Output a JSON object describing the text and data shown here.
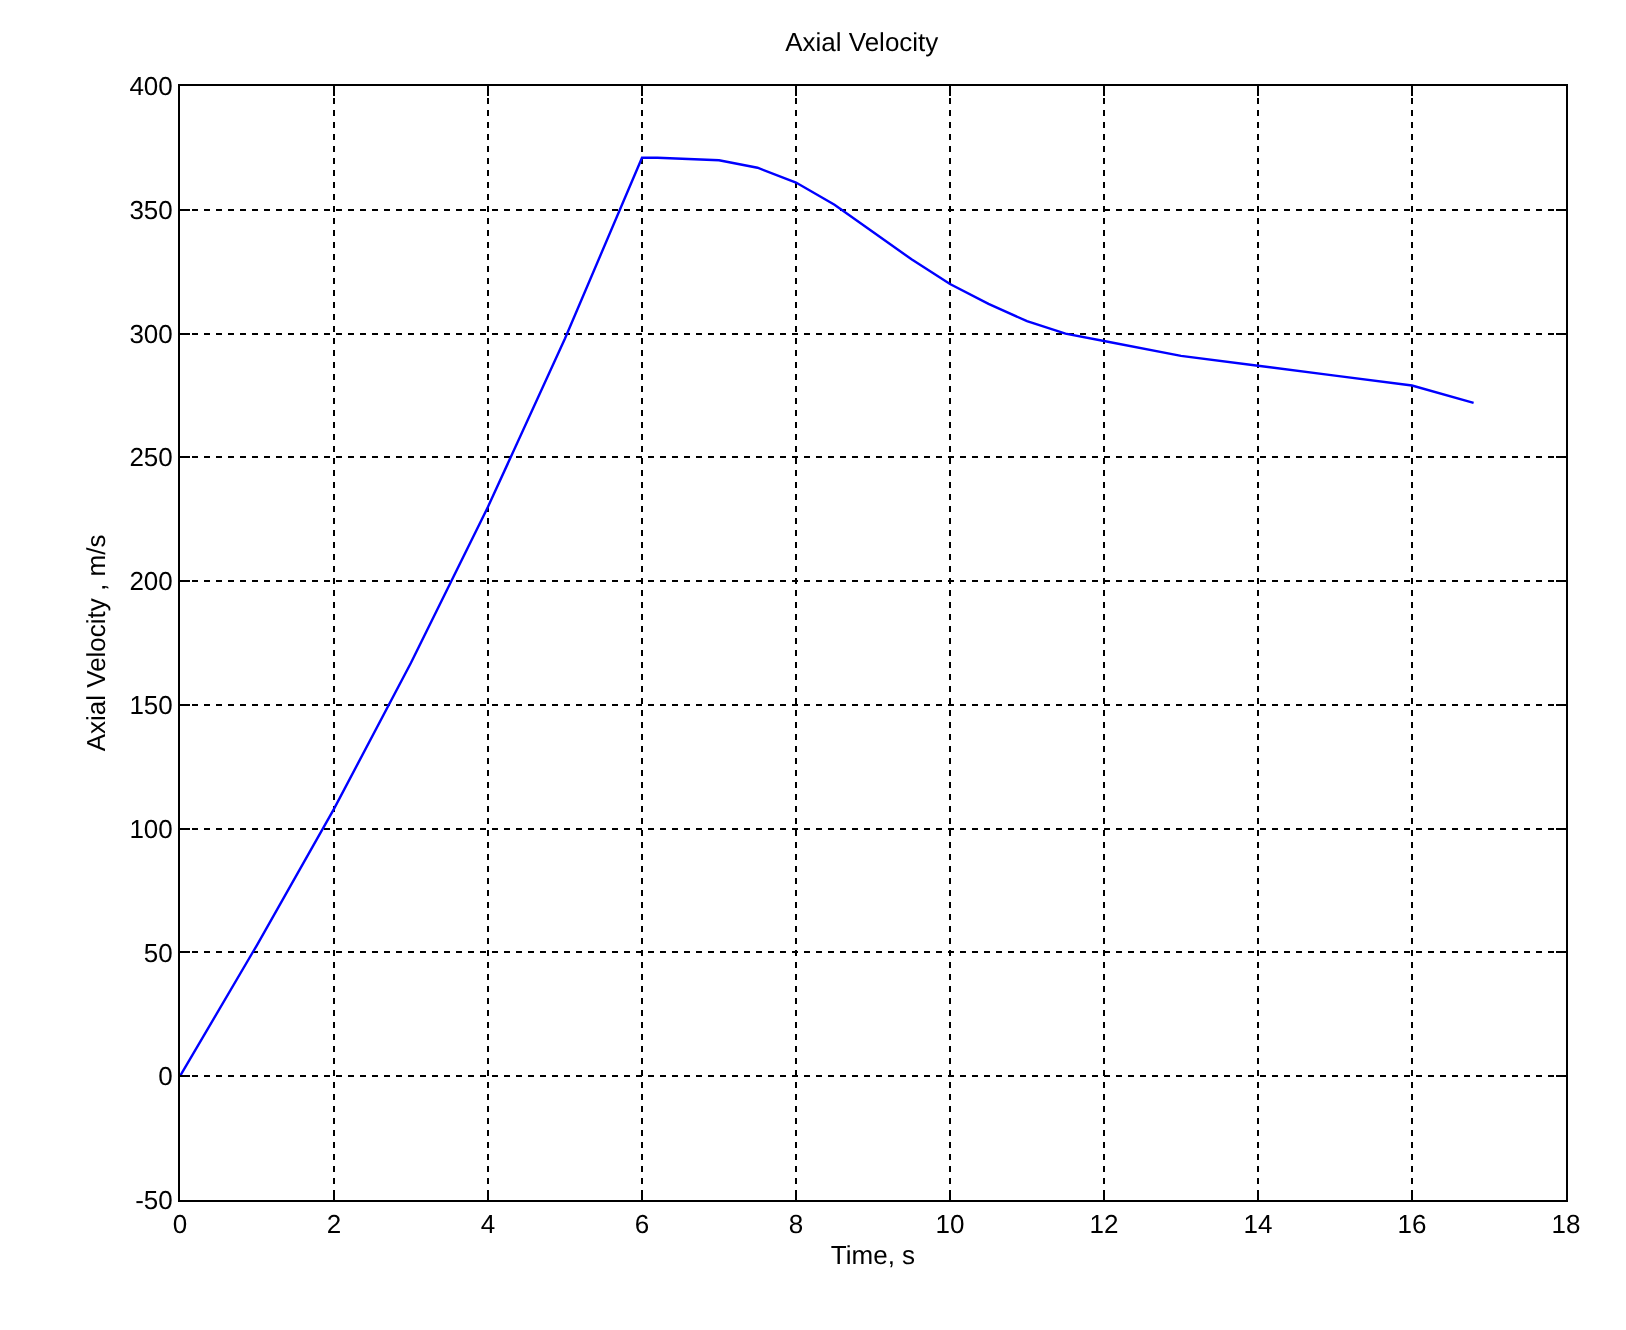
{
  "chart_data": {
    "type": "line",
    "title": "Axial Velocity",
    "xlabel": "Time, s",
    "ylabel": "Axial Velocity , m/s",
    "x": [
      0,
      1,
      2,
      3,
      4,
      5,
      6,
      6.2,
      7,
      7.5,
      8,
      8.5,
      9,
      9.5,
      10,
      10.5,
      11,
      11.5,
      12,
      13,
      14,
      15,
      16,
      16.8
    ],
    "series": [
      {
        "color": "#0000ff",
        "values": [
          0,
          53,
          108,
          167,
          230,
          298,
          371,
          371,
          370,
          367,
          361,
          352,
          341,
          330,
          320,
          312,
          305,
          300,
          297,
          291,
          287,
          283,
          279,
          272
        ]
      }
    ],
    "xlim": [
      0,
      18
    ],
    "xticks": [
      0,
      2,
      4,
      6,
      8,
      10,
      12,
      14,
      16,
      18
    ],
    "ylim": [
      -50,
      400
    ],
    "yticks": [
      -50,
      0,
      50,
      100,
      150,
      200,
      250,
      300,
      350,
      400
    ],
    "grid": true,
    "marker": "none",
    "line_style": "solid"
  }
}
